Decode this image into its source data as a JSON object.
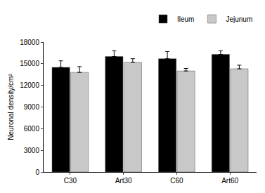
{
  "chart_data": {
    "type": "bar",
    "categories": [
      "C30",
      "Art30",
      "C60",
      "Art60"
    ],
    "series": [
      {
        "name": "Ileum",
        "color": "#000000",
        "values": [
          14500,
          16000,
          15700,
          16300
        ],
        "errors": [
          900,
          800,
          1000,
          500
        ]
      },
      {
        "name": "Jejunum",
        "color": "#c8c8c8",
        "values": [
          13800,
          15200,
          14000,
          14300
        ],
        "errors": [
          800,
          500,
          350,
          500
        ]
      }
    ],
    "y_label": "Neuronal density/cm²",
    "ylim": [
      0,
      18000
    ],
    "yticks": [
      0,
      3000,
      6000,
      9000,
      12000,
      15000,
      18000
    ],
    "grid": false,
    "legend": "top right"
  }
}
